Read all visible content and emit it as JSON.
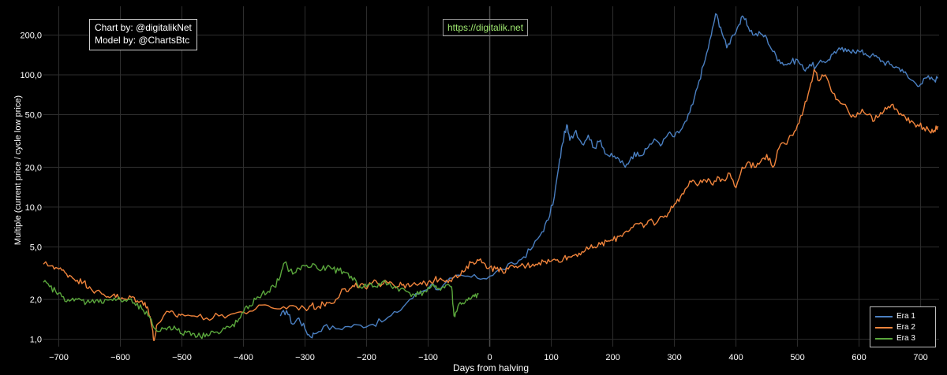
{
  "header": {
    "credit_line1": "Chart by: @digitalikNet",
    "credit_line2": "Model by: @ChartsBtc",
    "url": "https://digitalik.net"
  },
  "colors": {
    "background": "#000000",
    "grid": "#2e2e2e",
    "url_text": "#9fe870",
    "era1": "#4a7fc1",
    "era2": "#f0843c",
    "era3": "#5aa63c"
  },
  "chart_data": {
    "type": "line",
    "xlabel": "Days from halving",
    "ylabel": "Multiple (current price / cycle low price)",
    "yscale": "log",
    "xlim": [
      -725,
      730
    ],
    "ylim": [
      0.88,
      330
    ],
    "xticks": [
      -700,
      -600,
      -500,
      -400,
      -300,
      -200,
      -100,
      0,
      100,
      200,
      300,
      400,
      500,
      600,
      700
    ],
    "xtick_labels": [
      "−700",
      "−600",
      "−500",
      "−400",
      "−300",
      "−200",
      "−100",
      "0",
      "100",
      "200",
      "300",
      "400",
      "500",
      "600",
      "700"
    ],
    "yticks": [
      1,
      2,
      5,
      10,
      20,
      50,
      100,
      200
    ],
    "ytick_labels": [
      "1,0",
      "2,0",
      "5,0",
      "10,0",
      "20,0",
      "50,0",
      "100,0",
      "200,0"
    ],
    "grid": true,
    "legend_position": "bottom-right",
    "series": [
      {
        "name": "Era 1",
        "color": "#4a7fc1",
        "points": [
          [
            -340,
            1.5
          ],
          [
            -330,
            1.65
          ],
          [
            -320,
            1.3
          ],
          [
            -310,
            1.45
          ],
          [
            -300,
            1.2
          ],
          [
            -292,
            1.05
          ],
          [
            -285,
            1.1
          ],
          [
            -270,
            1.25
          ],
          [
            -250,
            1.2
          ],
          [
            -230,
            1.25
          ],
          [
            -210,
            1.28
          ],
          [
            -190,
            1.3
          ],
          [
            -170,
            1.4
          ],
          [
            -150,
            1.6
          ],
          [
            -130,
            2.0
          ],
          [
            -110,
            2.3
          ],
          [
            -95,
            2.6
          ],
          [
            -80,
            2.4
          ],
          [
            -60,
            2.9
          ],
          [
            -40,
            3.0
          ],
          [
            -20,
            2.9
          ],
          [
            0,
            3.0
          ],
          [
            20,
            3.4
          ],
          [
            40,
            3.7
          ],
          [
            55,
            4.2
          ],
          [
            70,
            5.0
          ],
          [
            85,
            6.5
          ],
          [
            95,
            8.0
          ],
          [
            105,
            12.0
          ],
          [
            112,
            20.0
          ],
          [
            118,
            30.0
          ],
          [
            125,
            42.0
          ],
          [
            130,
            32.0
          ],
          [
            140,
            38.0
          ],
          [
            150,
            30.0
          ],
          [
            160,
            35.0
          ],
          [
            170,
            28.0
          ],
          [
            180,
            32.0
          ],
          [
            190,
            25.0
          ],
          [
            200,
            24.0
          ],
          [
            210,
            23.0
          ],
          [
            220,
            20.0
          ],
          [
            230,
            24.0
          ],
          [
            240,
            26.0
          ],
          [
            250,
            25.0
          ],
          [
            260,
            30.0
          ],
          [
            270,
            32.0
          ],
          [
            280,
            30.0
          ],
          [
            290,
            36.0
          ],
          [
            300,
            34.0
          ],
          [
            310,
            38.0
          ],
          [
            320,
            45.0
          ],
          [
            330,
            60.0
          ],
          [
            340,
            90.0
          ],
          [
            350,
            130.0
          ],
          [
            360,
            200.0
          ],
          [
            367,
            290.0
          ],
          [
            375,
            230.0
          ],
          [
            385,
            160.0
          ],
          [
            395,
            200.0
          ],
          [
            405,
            240.0
          ],
          [
            412,
            275.0
          ],
          [
            420,
            230.0
          ],
          [
            430,
            200.0
          ],
          [
            440,
            205.0
          ],
          [
            450,
            190.0
          ],
          [
            460,
            150.0
          ],
          [
            470,
            130.0
          ],
          [
            480,
            120.0
          ],
          [
            490,
            125.0
          ],
          [
            500,
            130.0
          ],
          [
            510,
            110.0
          ],
          [
            520,
            120.0
          ],
          [
            530,
            115.0
          ],
          [
            540,
            125.0
          ],
          [
            550,
            130.0
          ],
          [
            560,
            150.0
          ],
          [
            570,
            155.0
          ],
          [
            580,
            150.0
          ],
          [
            590,
            155.0
          ],
          [
            600,
            150.0
          ],
          [
            610,
            145.0
          ],
          [
            620,
            140.0
          ],
          [
            630,
            135.0
          ],
          [
            640,
            125.0
          ],
          [
            650,
            120.0
          ],
          [
            660,
            115.0
          ],
          [
            670,
            110.0
          ],
          [
            680,
            95.0
          ],
          [
            690,
            88.0
          ],
          [
            700,
            85.0
          ],
          [
            710,
            95.0
          ],
          [
            720,
            92.0
          ],
          [
            728,
            94.0
          ]
        ]
      },
      {
        "name": "Era 2",
        "color": "#f0843c",
        "points": [
          [
            -725,
            3.7
          ],
          [
            -710,
            3.6
          ],
          [
            -700,
            3.4
          ],
          [
            -690,
            3.2
          ],
          [
            -680,
            3.0
          ],
          [
            -670,
            2.8
          ],
          [
            -660,
            2.7
          ],
          [
            -650,
            2.5
          ],
          [
            -640,
            2.3
          ],
          [
            -630,
            2.2
          ],
          [
            -620,
            2.1
          ],
          [
            -610,
            2.2
          ],
          [
            -600,
            2.0
          ],
          [
            -590,
            2.0
          ],
          [
            -580,
            2.1
          ],
          [
            -570,
            1.9
          ],
          [
            -560,
            1.9
          ],
          [
            -555,
            1.7
          ],
          [
            -548,
            1.2
          ],
          [
            -545,
            0.98
          ],
          [
            -540,
            1.3
          ],
          [
            -530,
            1.5
          ],
          [
            -520,
            1.6
          ],
          [
            -510,
            1.5
          ],
          [
            -500,
            1.55
          ],
          [
            -480,
            1.5
          ],
          [
            -460,
            1.45
          ],
          [
            -440,
            1.5
          ],
          [
            -420,
            1.55
          ],
          [
            -400,
            1.6
          ],
          [
            -380,
            1.7
          ],
          [
            -360,
            1.8
          ],
          [
            -340,
            1.7
          ],
          [
            -320,
            1.8
          ],
          [
            -300,
            1.7
          ],
          [
            -290,
            1.8
          ],
          [
            -280,
            1.75
          ],
          [
            -270,
            1.85
          ],
          [
            -260,
            1.9
          ],
          [
            -250,
            2.0
          ],
          [
            -240,
            2.4
          ],
          [
            -230,
            2.3
          ],
          [
            -220,
            2.5
          ],
          [
            -210,
            2.6
          ],
          [
            -200,
            2.4
          ],
          [
            -190,
            2.7
          ],
          [
            -180,
            2.6
          ],
          [
            -170,
            2.8
          ],
          [
            -160,
            2.7
          ],
          [
            -150,
            2.5
          ],
          [
            -140,
            2.6
          ],
          [
            -130,
            2.5
          ],
          [
            -120,
            2.6
          ],
          [
            -110,
            2.6
          ],
          [
            -100,
            2.7
          ],
          [
            -90,
            2.8
          ],
          [
            -80,
            2.9
          ],
          [
            -70,
            2.8
          ],
          [
            -60,
            2.9
          ],
          [
            -50,
            3.0
          ],
          [
            -40,
            3.3
          ],
          [
            -30,
            3.8
          ],
          [
            -20,
            4.0
          ],
          [
            -10,
            3.8
          ],
          [
            0,
            3.5
          ],
          [
            10,
            3.4
          ],
          [
            20,
            3.3
          ],
          [
            30,
            3.4
          ],
          [
            40,
            3.5
          ],
          [
            50,
            3.6
          ],
          [
            60,
            3.6
          ],
          [
            70,
            3.7
          ],
          [
            80,
            3.8
          ],
          [
            90,
            3.9
          ],
          [
            100,
            3.9
          ],
          [
            110,
            4.0
          ],
          [
            120,
            4.1
          ],
          [
            130,
            4.2
          ],
          [
            140,
            4.4
          ],
          [
            150,
            4.6
          ],
          [
            160,
            4.8
          ],
          [
            170,
            5.0
          ],
          [
            180,
            5.2
          ],
          [
            190,
            5.5
          ],
          [
            200,
            5.6
          ],
          [
            210,
            6.0
          ],
          [
            220,
            6.5
          ],
          [
            230,
            7.0
          ],
          [
            240,
            7.5
          ],
          [
            250,
            7.0
          ],
          [
            260,
            8.0
          ],
          [
            270,
            7.5
          ],
          [
            280,
            8.5
          ],
          [
            290,
            9.0
          ],
          [
            300,
            10.5
          ],
          [
            310,
            12.0
          ],
          [
            320,
            14.0
          ],
          [
            330,
            16.0
          ],
          [
            340,
            15.0
          ],
          [
            350,
            16.0
          ],
          [
            360,
            15.0
          ],
          [
            370,
            17.0
          ],
          [
            380,
            16.0
          ],
          [
            390,
            18.0
          ],
          [
            400,
            14.0
          ],
          [
            410,
            20.0
          ],
          [
            420,
            22.0
          ],
          [
            430,
            20.0
          ],
          [
            440,
            22.0
          ],
          [
            450,
            25.0
          ],
          [
            460,
            20.0
          ],
          [
            470,
            28.0
          ],
          [
            480,
            30.0
          ],
          [
            490,
            35.0
          ],
          [
            500,
            42.0
          ],
          [
            510,
            55.0
          ],
          [
            520,
            80.0
          ],
          [
            527,
            110.0
          ],
          [
            535,
            90.0
          ],
          [
            545,
            100.0
          ],
          [
            555,
            75.0
          ],
          [
            565,
            65.0
          ],
          [
            575,
            60.0
          ],
          [
            585,
            50.0
          ],
          [
            595,
            48.0
          ],
          [
            605,
            55.0
          ],
          [
            615,
            50.0
          ],
          [
            625,
            45.0
          ],
          [
            635,
            52.0
          ],
          [
            645,
            55.0
          ],
          [
            655,
            60.0
          ],
          [
            665,
            50.0
          ],
          [
            675,
            48.0
          ],
          [
            685,
            45.0
          ],
          [
            695,
            42.0
          ],
          [
            705,
            40.0
          ],
          [
            715,
            37.0
          ],
          [
            722,
            38.0
          ],
          [
            728,
            41.0
          ]
        ]
      },
      {
        "name": "Era 3",
        "color": "#5aa63c",
        "points": [
          [
            -725,
            2.7
          ],
          [
            -715,
            2.5
          ],
          [
            -705,
            2.3
          ],
          [
            -695,
            2.1
          ],
          [
            -685,
            2.0
          ],
          [
            -675,
            1.95
          ],
          [
            -665,
            2.0
          ],
          [
            -655,
            1.9
          ],
          [
            -645,
            2.0
          ],
          [
            -635,
            1.9
          ],
          [
            -625,
            2.0
          ],
          [
            -615,
            2.0
          ],
          [
            -605,
            2.0
          ],
          [
            -595,
            1.95
          ],
          [
            -585,
            2.0
          ],
          [
            -575,
            1.8
          ],
          [
            -565,
            1.7
          ],
          [
            -555,
            1.5
          ],
          [
            -548,
            1.3
          ],
          [
            -540,
            1.15
          ],
          [
            -530,
            1.2
          ],
          [
            -520,
            1.25
          ],
          [
            -510,
            1.2
          ],
          [
            -500,
            1.1
          ],
          [
            -490,
            1.15
          ],
          [
            -480,
            1.1
          ],
          [
            -470,
            1.05
          ],
          [
            -460,
            1.1
          ],
          [
            -450,
            1.15
          ],
          [
            -440,
            1.1
          ],
          [
            -430,
            1.2
          ],
          [
            -420,
            1.25
          ],
          [
            -410,
            1.35
          ],
          [
            -400,
            1.6
          ],
          [
            -390,
            1.8
          ],
          [
            -380,
            2.0
          ],
          [
            -370,
            2.2
          ],
          [
            -360,
            2.3
          ],
          [
            -350,
            2.5
          ],
          [
            -340,
            3.0
          ],
          [
            -333,
            3.8
          ],
          [
            -325,
            3.3
          ],
          [
            -315,
            3.2
          ],
          [
            -305,
            3.6
          ],
          [
            -295,
            3.5
          ],
          [
            -285,
            3.7
          ],
          [
            -275,
            3.3
          ],
          [
            -265,
            3.5
          ],
          [
            -255,
            3.4
          ],
          [
            -245,
            3.3
          ],
          [
            -235,
            3.2
          ],
          [
            -225,
            3.0
          ],
          [
            -215,
            2.6
          ],
          [
            -205,
            2.5
          ],
          [
            -195,
            2.6
          ],
          [
            -185,
            2.5
          ],
          [
            -175,
            2.7
          ],
          [
            -165,
            2.6
          ],
          [
            -155,
            2.5
          ],
          [
            -145,
            2.4
          ],
          [
            -135,
            2.3
          ],
          [
            -125,
            2.2
          ],
          [
            -115,
            2.2
          ],
          [
            -105,
            2.3
          ],
          [
            -95,
            2.5
          ],
          [
            -85,
            2.4
          ],
          [
            -75,
            2.5
          ],
          [
            -68,
            2.6
          ],
          [
            -62,
            2.5
          ],
          [
            -58,
            1.5
          ],
          [
            -55,
            1.6
          ],
          [
            -48,
            1.9
          ],
          [
            -40,
            1.9
          ],
          [
            -32,
            2.0
          ],
          [
            -25,
            2.1
          ],
          [
            -18,
            2.2
          ]
        ]
      }
    ]
  }
}
